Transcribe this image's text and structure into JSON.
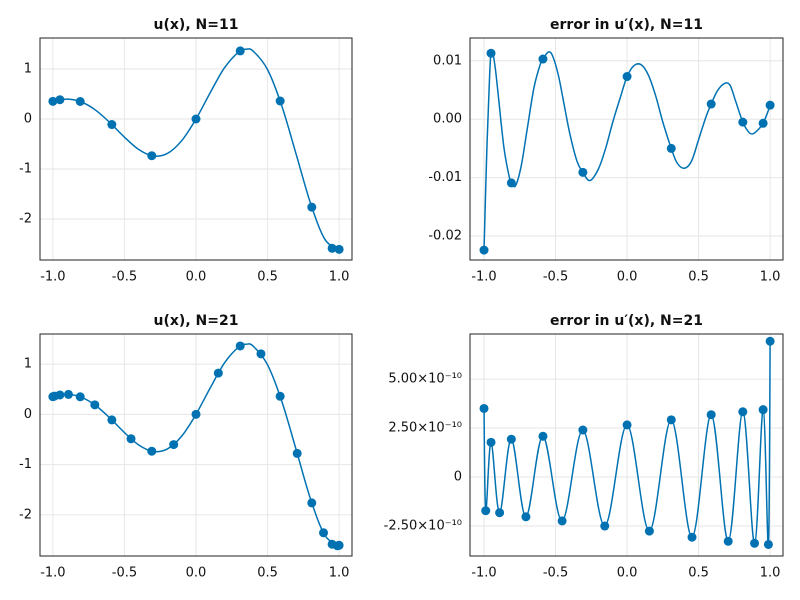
{
  "chart_data": [
    {
      "type": "line",
      "title": "u(x),  N=11",
      "xlim": [
        -1.09,
        1.09
      ],
      "ylim": [
        -2.82,
        1.62
      ],
      "xticks": [
        {
          "value": -1,
          "label": "-1.0"
        },
        {
          "value": -0.5,
          "label": "-0.5"
        },
        {
          "value": 0,
          "label": "0.0"
        },
        {
          "value": 0.5,
          "label": "0.5"
        },
        {
          "value": 1,
          "label": "1.0"
        }
      ],
      "yticks": [
        -2,
        -1,
        0,
        1
      ],
      "grid": true,
      "series": [
        {
          "color": "#0072b2",
          "line": true,
          "markers": false,
          "smooth": true,
          "x": [
            -1,
            -0.9,
            -0.8,
            -0.7,
            -0.6,
            -0.5,
            -0.4,
            -0.3,
            -0.2,
            -0.1,
            0,
            0.1,
            0.2,
            0.3,
            0.35,
            0.4,
            0.5,
            0.6,
            0.7,
            0.8,
            0.9,
            1
          ],
          "values": [
            0.353,
            0.397,
            0.34,
            0.174,
            -0.077,
            -0.363,
            -0.61,
            -0.739,
            -0.689,
            -0.434,
            0,
            0.53,
            1.028,
            1.347,
            1.396,
            1.357,
            0.987,
            0.257,
            -0.706,
            -1.684,
            -2.404,
            -2.607
          ]
        },
        {
          "color": "#0072b2",
          "line": false,
          "markers": true,
          "x": [
            -1,
            -0.951,
            -0.809,
            -0.588,
            -0.309,
            0,
            0.309,
            0.588,
            0.809,
            0.951,
            1
          ],
          "values": [
            0.353,
            0.386,
            0.35,
            -0.111,
            -0.734,
            0,
            1.362,
            0.36,
            -1.763,
            -2.586,
            -2.607
          ]
        }
      ]
    },
    {
      "type": "line",
      "title": "error in u′(x),  N=11",
      "xlim": [
        -1.098,
        1.09
      ],
      "ylim": [
        -0.0241,
        0.0139
      ],
      "xticks": [
        {
          "value": -1,
          "label": "-1.0"
        },
        {
          "value": -0.5,
          "label": "-0.5"
        },
        {
          "value": 0,
          "label": "0.0"
        },
        {
          "value": 0.5,
          "label": "0.5"
        },
        {
          "value": 1,
          "label": "1.0"
        }
      ],
      "yticks": [
        -0.02,
        -0.01,
        {
          "value": 0,
          "label": "0.00"
        },
        0.01
      ],
      "grid": true,
      "series": [
        {
          "color": "#0072b2",
          "line": true,
          "markers": false,
          "smooth": true,
          "x": [
            -1,
            -0.98,
            -0.96,
            -0.951,
            -0.94,
            -0.92,
            -0.9,
            -0.86,
            -0.82,
            -0.809,
            -0.78,
            -0.74,
            -0.7,
            -0.65,
            -0.6,
            -0.588,
            -0.55,
            -0.52,
            -0.48,
            -0.44,
            -0.4,
            -0.35,
            -0.309,
            -0.26,
            -0.2,
            -0.15,
            -0.1,
            -0.05,
            0,
            0.05,
            0.1,
            0.15,
            0.2,
            0.25,
            0.309,
            0.35,
            0.4,
            0.45,
            0.5,
            0.55,
            0.588,
            0.63,
            0.68,
            0.72,
            0.76,
            0.809,
            0.85,
            0.88,
            0.92,
            0.951,
            0.98,
            1
          ],
          "values": [
            -0.0224,
            -0.005,
            0.008,
            0.0113,
            0.0115,
            0.0085,
            0.004,
            -0.005,
            -0.0103,
            -0.0109,
            -0.0114,
            -0.008,
            -0.002,
            0.0055,
            0.0099,
            0.0103,
            0.0115,
            0.0108,
            0.0075,
            0.0025,
            -0.0025,
            -0.0072,
            -0.0091,
            -0.0105,
            -0.0085,
            -0.005,
            -0.0005,
            0.0035,
            0.0073,
            0.0092,
            0.0093,
            0.0075,
            0.004,
            -0.0005,
            -0.005,
            -0.0075,
            -0.0084,
            -0.0072,
            -0.0035,
            0.0003,
            0.0026,
            0.0048,
            0.0061,
            0.0058,
            0.003,
            -0.0005,
            -0.0022,
            -0.0025,
            -0.0017,
            -0.0007,
            0.001,
            0.0024
          ]
        },
        {
          "color": "#0072b2",
          "line": false,
          "markers": true,
          "x": [
            -1,
            -0.951,
            -0.809,
            -0.588,
            -0.309,
            0,
            0.309,
            0.588,
            0.809,
            0.951,
            1
          ],
          "values": [
            -0.0224,
            0.0113,
            -0.0109,
            0.0103,
            -0.0091,
            0.0073,
            -0.005,
            0.0026,
            -0.0005,
            -0.0007,
            0.0024
          ]
        }
      ]
    },
    {
      "type": "line",
      "title": "u(x),  N=21",
      "xlim": [
        -1.09,
        1.09
      ],
      "ylim": [
        -2.82,
        1.6
      ],
      "xticks": [
        {
          "value": -1,
          "label": "-1.0"
        },
        {
          "value": -0.5,
          "label": "-0.5"
        },
        {
          "value": 0,
          "label": "0.0"
        },
        {
          "value": 0.5,
          "label": "0.5"
        },
        {
          "value": 1,
          "label": "1.0"
        }
      ],
      "yticks": [
        -2,
        -1,
        0,
        1
      ],
      "grid": true,
      "series": [
        {
          "color": "#0072b2",
          "line": true,
          "markers": false,
          "smooth": true,
          "x": [
            -1,
            -0.9,
            -0.8,
            -0.7,
            -0.6,
            -0.5,
            -0.4,
            -0.3,
            -0.2,
            -0.1,
            0,
            0.1,
            0.2,
            0.3,
            0.35,
            0.4,
            0.5,
            0.6,
            0.7,
            0.8,
            0.9,
            1
          ],
          "values": [
            0.353,
            0.397,
            0.34,
            0.174,
            -0.077,
            -0.363,
            -0.61,
            -0.739,
            -0.689,
            -0.434,
            0,
            0.53,
            1.028,
            1.347,
            1.396,
            1.357,
            0.987,
            0.257,
            -0.706,
            -1.684,
            -2.404,
            -2.607
          ]
        },
        {
          "color": "#0072b2",
          "line": false,
          "markers": true,
          "x": [
            -1,
            -0.988,
            -0.951,
            -0.891,
            -0.809,
            -0.707,
            -0.588,
            -0.454,
            -0.309,
            -0.156,
            0,
            0.156,
            0.309,
            0.454,
            0.588,
            0.707,
            0.809,
            0.891,
            0.951,
            0.988,
            1
          ],
          "values": [
            0.353,
            0.363,
            0.386,
            0.397,
            0.35,
            0.189,
            -0.111,
            -0.486,
            -0.734,
            -0.602,
            0,
            0.822,
            1.362,
            1.205,
            0.36,
            -0.777,
            -1.763,
            -2.358,
            -2.586,
            -2.617,
            -2.607
          ]
        }
      ]
    },
    {
      "type": "line",
      "title": "error in u′(x),  N=21",
      "xlim": [
        -1.098,
        1.09
      ],
      "ylim": [
        -4.03e-10,
        7.3e-10
      ],
      "xticks": [
        {
          "value": -1,
          "label": "-1.0"
        },
        {
          "value": -0.5,
          "label": "-0.5"
        },
        {
          "value": 0,
          "label": "0.0"
        },
        {
          "value": 0.5,
          "label": "0.5"
        },
        {
          "value": 1,
          "label": "1.0"
        }
      ],
      "yticks": [
        {
          "value": -2.5e-10,
          "label": "-2.50×10⁻¹⁰"
        },
        0,
        {
          "value": 2.5e-10,
          "label": "2.50×10⁻¹⁰"
        },
        {
          "value": 5e-10,
          "label": "5.00×10⁻¹⁰"
        }
      ],
      "grid": true,
      "series": [
        {
          "color": "#0072b2",
          "line": true,
          "markers": true,
          "smooth": true,
          "x": [
            -1,
            -0.988,
            -0.951,
            -0.891,
            -0.809,
            -0.707,
            -0.588,
            -0.454,
            -0.309,
            -0.156,
            0,
            0.156,
            0.309,
            0.454,
            0.588,
            0.707,
            0.809,
            0.891,
            0.951,
            0.988,
            1
          ],
          "values": [
            3.5e-10,
            -1.72e-10,
            1.77e-10,
            -1.82e-10,
            1.93e-10,
            -2.03e-10,
            2.08e-10,
            -2.24e-10,
            2.4e-10,
            -2.5e-10,
            2.66e-10,
            -2.76e-10,
            2.92e-10,
            -3.07e-10,
            3.18e-10,
            -3.28e-10,
            3.33e-10,
            -3.38e-10,
            3.44e-10,
            -3.44e-10,
            6.93e-10
          ]
        }
      ]
    }
  ]
}
